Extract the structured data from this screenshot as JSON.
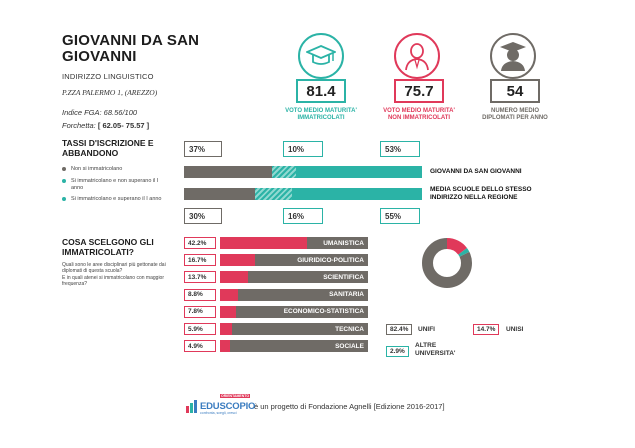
{
  "header": {
    "school_name": "GIOVANNI DA SAN GIOVANNI",
    "indirizzo": "INDIRIZZO LINGUISTICO",
    "address": "P.ZZA PALERMO 1, (AREZZO)",
    "fga": "Indice FGA: 68.56/100",
    "forchetta_label": "Forchetta:",
    "forchetta_value": "[ 62.05- 75.57 ]"
  },
  "kpis": [
    {
      "value": "81.4",
      "label": "VOTO MEDIO MATURITA' IMMATRICOLATI",
      "color": "#2bb3a6",
      "icon": "graduation-cap-icon"
    },
    {
      "value": "75.7",
      "label": "VOTO MEDIO MATURITA' NON IMMATRICOLATI",
      "color": "#e0395a",
      "icon": "person-icon"
    },
    {
      "value": "54",
      "label": "NUMERO MEDIO DIPLOMATI PER ANNO",
      "color": "#6f6b66",
      "icon": "graduate-icon"
    }
  ],
  "tassi": {
    "title": "TASSI D'ISCRIZIONE E ABBANDONO",
    "legend": [
      {
        "label": "Non si immatricolano",
        "color": "#6f6b66"
      },
      {
        "label": "Si immatricolano e non superano il I anno",
        "color": "#2bb3a6"
      },
      {
        "label": "Si immatricolano e superano il I anno",
        "color": "#2bb3a6"
      }
    ],
    "school": {
      "label": "GIOVANNI DA SAN GIOVANNI",
      "non_immatricolati": 37,
      "abbandono": 10,
      "superano": 53,
      "non_immatricolati_label": "37%",
      "abbandono_label": "10%",
      "superano_label": "53%"
    },
    "media": {
      "label": "MEDIA SCUOLE DELLO STESSO INDIRIZZO NELLA REGIONE",
      "non_immatricolati": 30,
      "abbandono": 16,
      "superano": 55,
      "non_immatricolati_label": "30%",
      "abbandono_label": "16%",
      "superano_label": "55%"
    }
  },
  "cosa": {
    "title": "COSA SCELGONO GLI IMMATRICOLATI?",
    "subtitle1": "Quali sono le aree disciplinari più gettonate dai diplomati di questa scuola?",
    "subtitle2": "E in quali atenei si immatricolano con maggior frequenza?",
    "areas": [
      {
        "pct": 42.2,
        "pct_label": "42.2%",
        "label": "UMANISTICA"
      },
      {
        "pct": 16.7,
        "pct_label": "16.7%",
        "label": "GIURIDICO-POLITICA"
      },
      {
        "pct": 13.7,
        "pct_label": "13.7%",
        "label": "SCIENTIFICA"
      },
      {
        "pct": 8.8,
        "pct_label": "8.8%",
        "label": "SANITARIA"
      },
      {
        "pct": 7.8,
        "pct_label": "7.8%",
        "label": "ECONOMICO-STATISTICA"
      },
      {
        "pct": 5.9,
        "pct_label": "5.9%",
        "label": "TECNICA"
      },
      {
        "pct": 4.9,
        "pct_label": "4.9%",
        "label": "SOCIALE"
      }
    ],
    "atenei": [
      {
        "pct": 82.4,
        "pct_label": "82.4%",
        "label": "UNIFI",
        "color": "#6f6b66"
      },
      {
        "pct": 14.7,
        "pct_label": "14.7%",
        "label": "UNISI",
        "color": "#e0395a"
      },
      {
        "pct": 2.9,
        "pct_label": "2.9%",
        "label": "ALTRE UNIVERSITA'",
        "color": "#2bb3a6"
      }
    ]
  },
  "footer": {
    "logo_text": "EDUSCOPIO",
    "logo_badge": "ORIENTAMENTO",
    "logo_sub": "confronta, scegli, cresci",
    "text": "è un progetto di Fondazione Agnelli [Edizione 2016-2017]"
  }
}
